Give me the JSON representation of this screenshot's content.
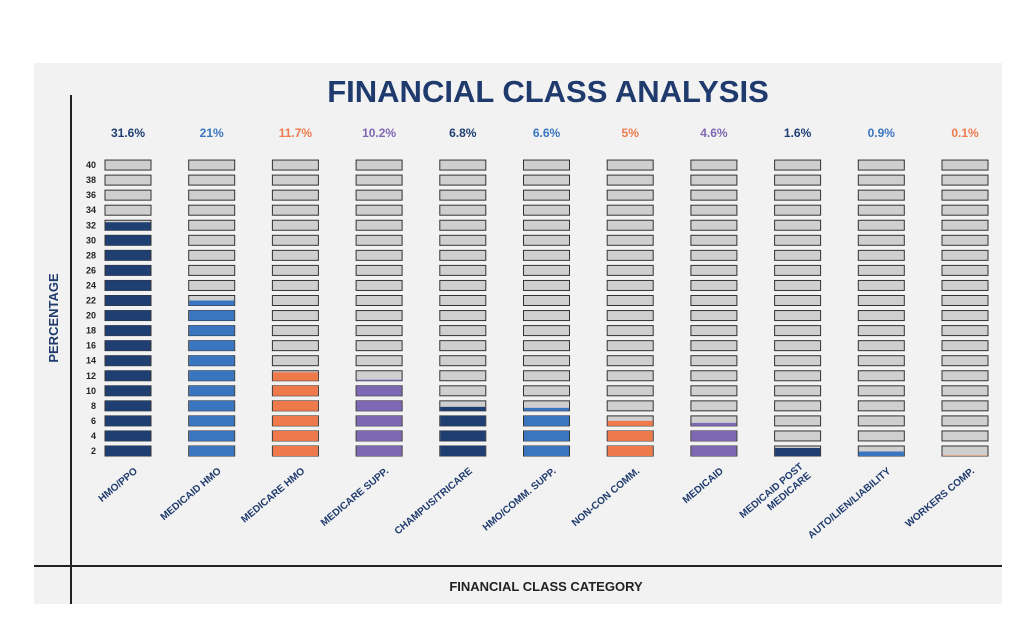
{
  "chart_data": {
    "type": "bar",
    "title": "FINANCIAL CLASS ANALYSIS",
    "xlabel": "FINANCIAL CLASS CATEGORY",
    "ylabel": "PERCENTAGE",
    "ylim": [
      0,
      40
    ],
    "yticks": [
      "2",
      "4",
      "6",
      "8",
      "10",
      "12",
      "14",
      "16",
      "18",
      "20",
      "22",
      "24",
      "26",
      "28",
      "30",
      "32",
      "34",
      "36",
      "38",
      "40"
    ],
    "categories": [
      "HMO/PPO",
      "MEDICAID HMO",
      "MEDICARE HMO",
      "MEDICARE SUPP.",
      "CHAMPUS/TRICARE",
      "HMO/COMM. SUPP.",
      "NON-CON COMM.",
      "MEDICAID",
      "MEDICAID POST MEDICARE",
      "AUTO/LIEN/LIABILITY",
      "WORKERS COMP."
    ],
    "category_lines": [
      [
        "HMO/PPO"
      ],
      [
        "MEDICAID HMO"
      ],
      [
        "MEDICARE HMO"
      ],
      [
        "MEDICARE SUPP."
      ],
      [
        "CHAMPUS/TRICARE"
      ],
      [
        "HMO/COMM. SUPP."
      ],
      [
        "NON-CON COMM."
      ],
      [
        "MEDICAID"
      ],
      [
        "MEDICAID POST",
        "MEDICARE"
      ],
      [
        "AUTO/LIEN/LIABILITY"
      ],
      [
        "WORKERS COMP."
      ]
    ],
    "values": [
      31.6,
      21,
      11.7,
      10.2,
      6.8,
      6.6,
      5,
      4.6,
      1.6,
      0.9,
      0.1
    ],
    "value_labels": [
      "31.6%",
      "21%",
      "11.7%",
      "10.2%",
      "6.8%",
      "6.6%",
      "5%",
      "4.6%",
      "1.6%",
      "0.9%",
      "0.1%"
    ],
    "colors": [
      "#1f3f73",
      "#3a76bf",
      "#ee7a4c",
      "#7e68b4",
      "#1f3f73",
      "#3a76bf",
      "#ee7a4c",
      "#7e68b4",
      "#1f3f73",
      "#3a76bf",
      "#ee7a4c"
    ],
    "label_colors": [
      "#1f3f73",
      "#3a76bf",
      "#ee7a4c",
      "#7e68b4",
      "#1f3f73",
      "#3a76bf",
      "#ee7a4c",
      "#7e68b4",
      "#1f3f73",
      "#3a76bf",
      "#ee7a4c"
    ],
    "empty_color": "#cfcfcf",
    "title_color": "#1f3a6d",
    "grid": false
  }
}
